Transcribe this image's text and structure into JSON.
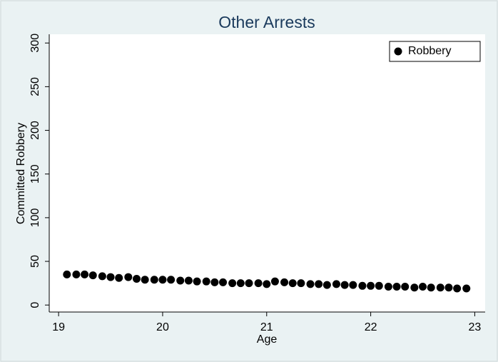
{
  "chart_data": {
    "type": "scatter",
    "title": "Other Arrests",
    "x_label": "Age",
    "y_label": "Committed Robbery",
    "xlim": [
      18.91,
      23.1
    ],
    "ylim": [
      -8,
      310
    ],
    "xticks": [
      19,
      20,
      21,
      22,
      23
    ],
    "yticks": [
      0,
      50,
      100,
      150,
      200,
      250,
      300
    ],
    "legend_position": "top-right",
    "series": [
      {
        "name": "Robbery",
        "color": "#000000",
        "x": [
          19.08,
          19.17,
          19.25,
          19.33,
          19.42,
          19.5,
          19.58,
          19.67,
          19.75,
          19.83,
          19.92,
          20.0,
          20.08,
          20.17,
          20.25,
          20.33,
          20.42,
          20.5,
          20.58,
          20.67,
          20.75,
          20.83,
          20.92,
          21.0,
          21.08,
          21.17,
          21.25,
          21.33,
          21.42,
          21.5,
          21.58,
          21.67,
          21.75,
          21.83,
          21.92,
          22.0,
          22.08,
          22.17,
          22.25,
          22.33,
          22.42,
          22.5,
          22.58,
          22.67,
          22.75,
          22.83,
          22.92
        ],
        "values": [
          35,
          35,
          35,
          34,
          33,
          32,
          31,
          32,
          30,
          29,
          29,
          29,
          29,
          28,
          28,
          27,
          27,
          26,
          26,
          25,
          25,
          25,
          25,
          24,
          27,
          26,
          25,
          25,
          24,
          24,
          23,
          24,
          23,
          23,
          22,
          22,
          22,
          21,
          21,
          21,
          20,
          21,
          20,
          20,
          20,
          19,
          19
        ]
      }
    ]
  }
}
